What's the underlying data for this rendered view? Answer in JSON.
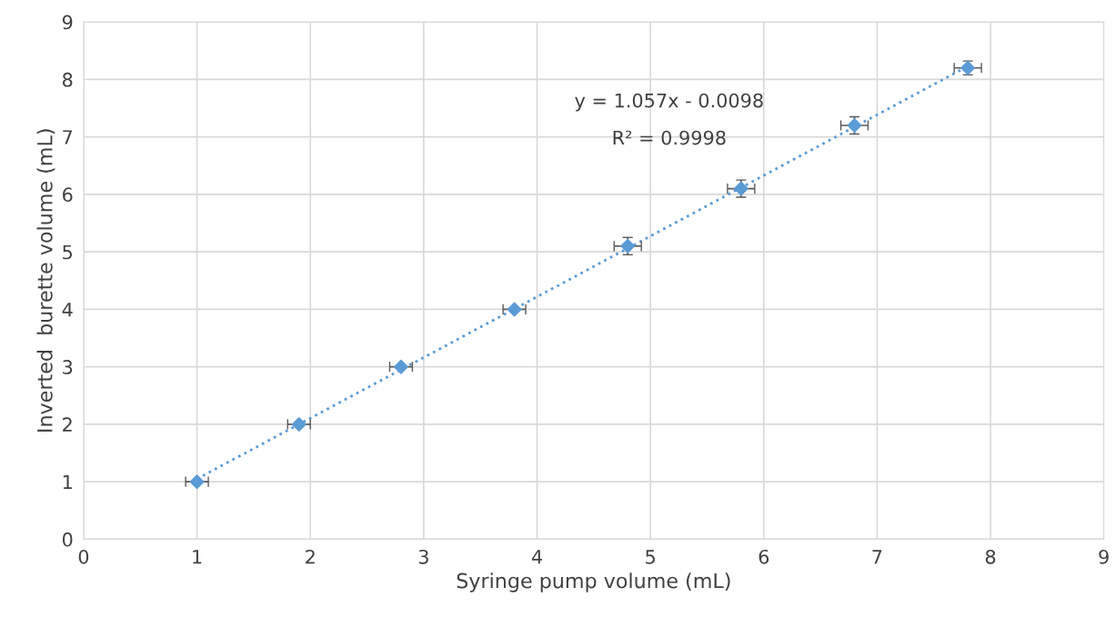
{
  "chart_data": {
    "type": "scatter",
    "xlabel": "Syringe pump volume (mL)",
    "ylabel": "Inverted  burette volume (mL)",
    "xlim": [
      0,
      9
    ],
    "xticks": [
      0,
      1,
      2,
      3,
      4,
      5,
      6,
      7,
      8,
      9
    ],
    "ylim": [
      0,
      9
    ],
    "yticks": [
      0,
      1,
      2,
      3,
      4,
      5,
      6,
      7,
      8,
      9
    ],
    "grid": true,
    "legend": false,
    "series": [
      {
        "color": "#5b9bd5",
        "marker": "diamond",
        "x": [
          1,
          1.9,
          2.8,
          3.8,
          4.8,
          5.8,
          6.8,
          7.8
        ],
        "values": [
          1,
          2,
          3,
          4,
          5.1,
          6.1,
          7.2,
          8.2
        ],
        "errors": [
          null,
          null,
          null,
          null,
          0.15,
          0.15,
          0.15,
          0.12
        ],
        "xerrors": [
          0.1,
          0.1,
          0.1,
          0.1,
          0.12,
          0.12,
          0.12,
          0.12
        ]
      },
      {
        "type": "line",
        "color": "#5b9bd5",
        "line_style": "dotted",
        "x": [
          1,
          7.8
        ],
        "values": [
          1.05,
          8.23
        ]
      }
    ],
    "annotations": [
      "y = 1.057x - 0.0098",
      "R² = 0.9998"
    ]
  }
}
